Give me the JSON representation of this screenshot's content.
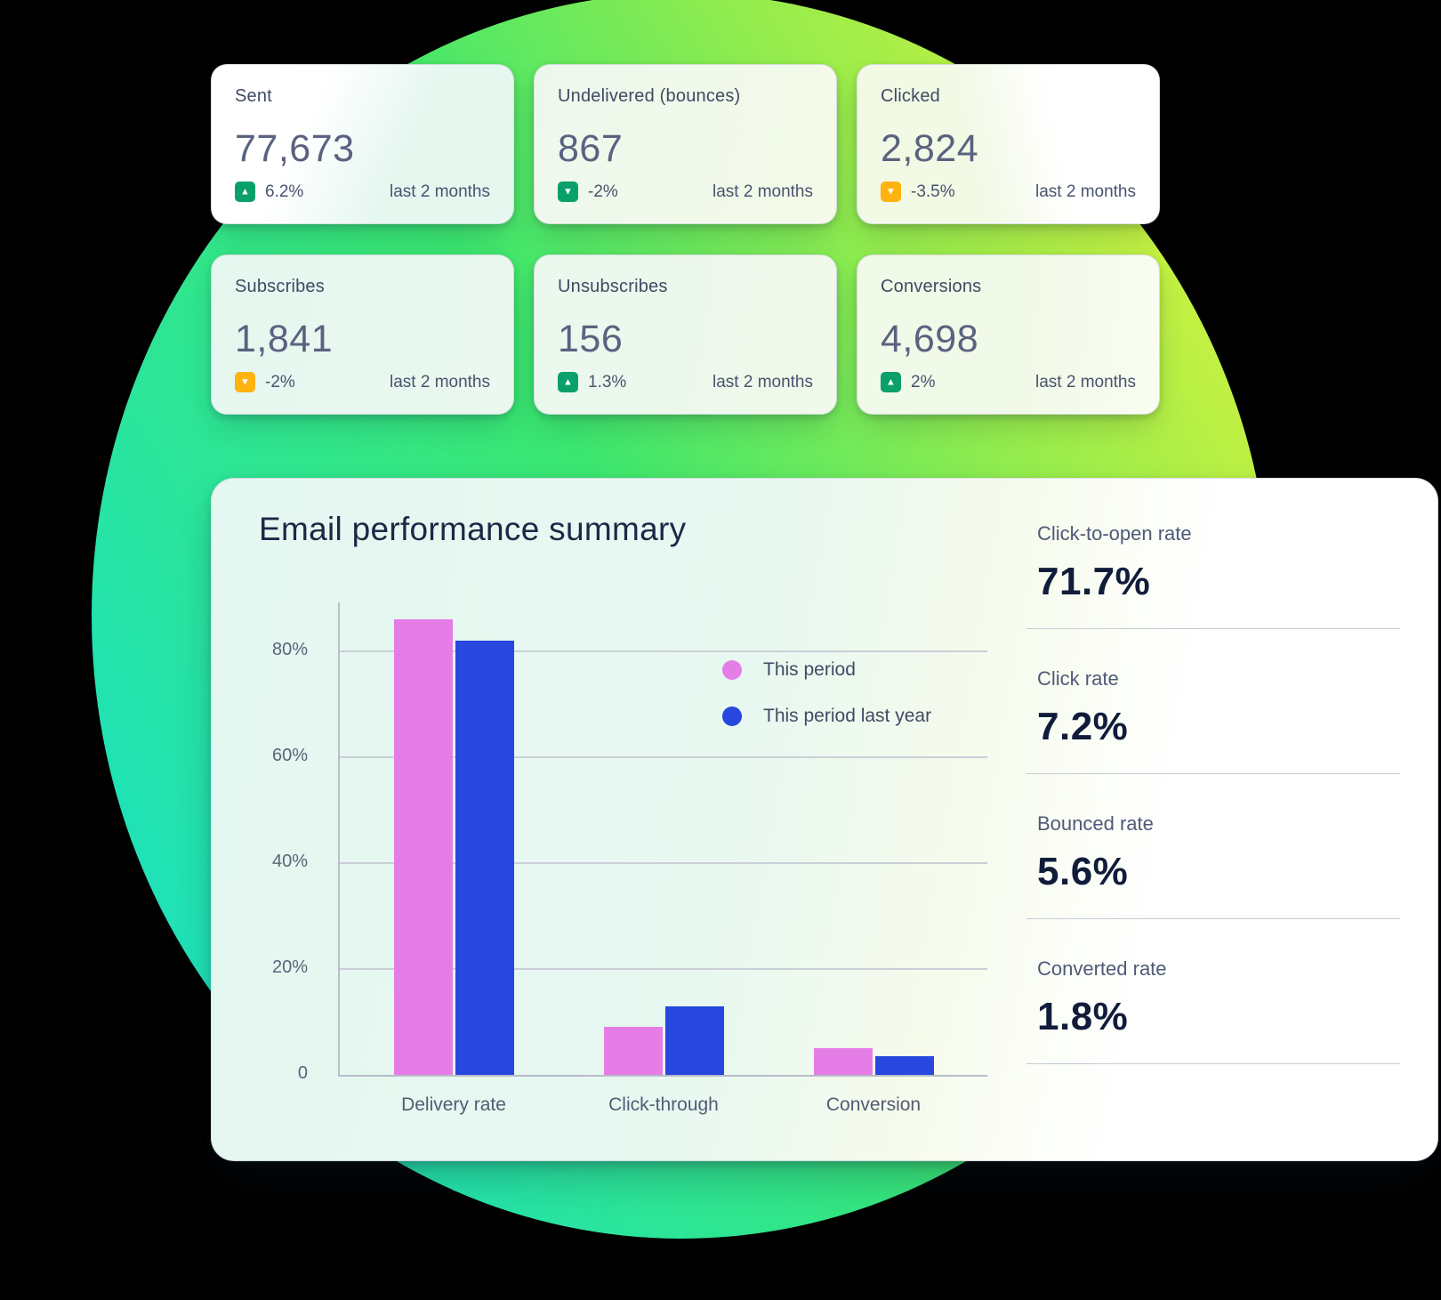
{
  "background_color": "#000000",
  "circle_gradient": [
    "#19e1c6",
    "#2ce597",
    "#3be66f",
    "#93ec4d",
    "#e4f43a"
  ],
  "badge_colors": {
    "green": "#0aa06b",
    "yellow": "#ffb30f"
  },
  "stat_cards": [
    {
      "label": "Sent",
      "value": "77,673",
      "change": "6.2%",
      "direction": "up",
      "tone": "green",
      "period": "last 2 months"
    },
    {
      "label": "Undelivered (bounces)",
      "value": "867",
      "change": "-2%",
      "direction": "down",
      "tone": "green",
      "period": "last 2 months"
    },
    {
      "label": "Clicked",
      "value": "2,824",
      "change": "-3.5%",
      "direction": "down",
      "tone": "yellow",
      "period": "last 2 months"
    },
    {
      "label": "Subscribes",
      "value": "1,841",
      "change": "-2%",
      "direction": "down",
      "tone": "yellow",
      "period": "last 2 months"
    },
    {
      "label": "Unsubscribes",
      "value": "156",
      "change": "1.3%",
      "direction": "up",
      "tone": "green",
      "period": "last 2 months"
    },
    {
      "label": "Conversions",
      "value": "4,698",
      "change": "2%",
      "direction": "up",
      "tone": "green",
      "period": "last 2 months"
    }
  ],
  "summary_card": {
    "title": "Email performance summary",
    "side_stats": [
      {
        "label": "Click-to-open rate",
        "value": "71.7%"
      },
      {
        "label": "Click rate",
        "value": "7.2%"
      },
      {
        "label": "Bounced rate",
        "value": "5.6%"
      },
      {
        "label": "Converted rate",
        "value": "1.8%"
      }
    ],
    "chart_data": {
      "type": "bar",
      "categories": [
        "Delivery rate",
        "Click-through",
        "Conversion"
      ],
      "series": [
        {
          "name": "This period",
          "color": "#e57de7",
          "values": [
            86,
            9,
            5
          ]
        },
        {
          "name": "This period last year",
          "color": "#2847de",
          "values": [
            82,
            13,
            3.5
          ]
        }
      ],
      "yticks": [
        {
          "label": "0",
          "value": 0
        },
        {
          "label": "20%",
          "value": 20
        },
        {
          "label": "40%",
          "value": 40
        },
        {
          "label": "60%",
          "value": 60
        },
        {
          "label": "80%",
          "value": 80
        }
      ],
      "ylim": [
        0,
        89
      ],
      "grid": "horizontal",
      "legend_position": "top-right-inside"
    }
  }
}
